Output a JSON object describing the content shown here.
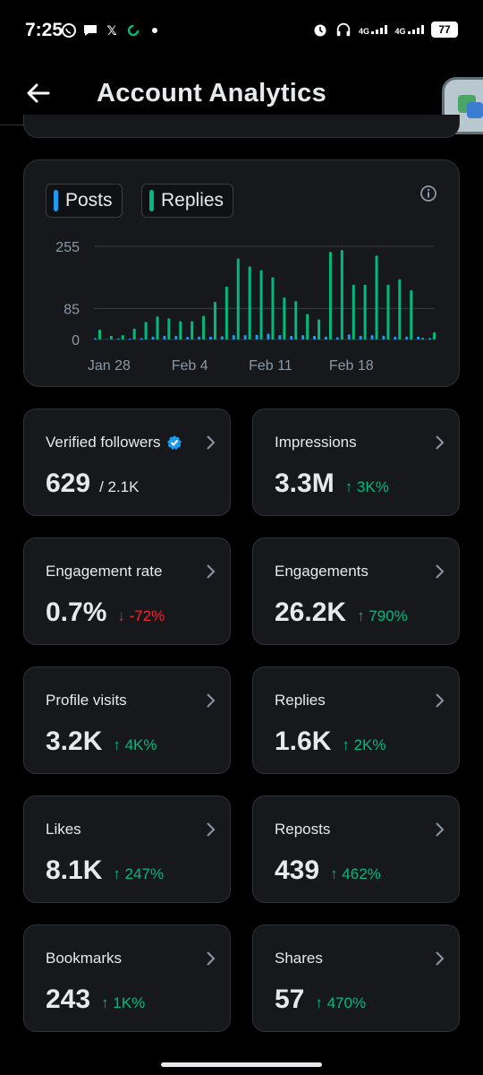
{
  "status_bar": {
    "time": "7:25",
    "network_1": "4G",
    "network_2": "4G",
    "battery": "77"
  },
  "header": {
    "title": "Account Analytics"
  },
  "chart": {
    "legend": [
      {
        "label": "Posts",
        "color": "#1d9bf0"
      },
      {
        "label": "Replies",
        "color": "#00ba7c"
      }
    ]
  },
  "chart_data": {
    "type": "bar",
    "y_ticks": [
      "255",
      "85",
      "0"
    ],
    "ylim": [
      0,
      255
    ],
    "x_ticks": [
      "Jan 28",
      "Feb 4",
      "Feb 11",
      "Feb 18"
    ],
    "categories": [
      "Jan 27",
      "Jan 28",
      "Jan 29",
      "Jan 30",
      "Jan 31",
      "Feb 1",
      "Feb 2",
      "Feb 3",
      "Feb 4",
      "Feb 5",
      "Feb 6",
      "Feb 7",
      "Feb 8",
      "Feb 9",
      "Feb 10",
      "Feb 11",
      "Feb 12",
      "Feb 13",
      "Feb 14",
      "Feb 15",
      "Feb 16",
      "Feb 17",
      "Feb 18",
      "Feb 19",
      "Feb 20",
      "Feb 21",
      "Feb 22",
      "Feb 23",
      "Feb 24",
      "Feb 25"
    ],
    "series": [
      {
        "name": "Posts",
        "color": "#1d9bf0",
        "values": [
          4,
          1,
          3,
          2,
          4,
          8,
          10,
          10,
          7,
          8,
          8,
          9,
          12,
          12,
          13,
          16,
          12,
          10,
          12,
          10,
          8,
          6,
          14,
          10,
          12,
          10,
          8,
          8,
          8,
          4
        ]
      },
      {
        "name": "Replies",
        "color": "#00ba7c",
        "values": [
          27,
          10,
          12,
          30,
          48,
          63,
          58,
          50,
          50,
          65,
          103,
          145,
          222,
          200,
          190,
          170,
          115,
          105,
          70,
          55,
          240,
          245,
          150,
          150,
          230,
          150,
          165,
          135,
          5,
          20
        ]
      }
    ]
  },
  "stats": [
    {
      "label": "Verified followers",
      "value": "629",
      "extra": "/ 2.1K",
      "verified": true
    },
    {
      "label": "Impressions",
      "value": "3.3M",
      "delta": "↑ 3K%",
      "dir": "up"
    },
    {
      "label": "Engagement rate",
      "value": "0.7%",
      "delta": "↓ -72%",
      "dir": "down"
    },
    {
      "label": "Engagements",
      "value": "26.2K",
      "delta": "↑ 790%",
      "dir": "up"
    },
    {
      "label": "Profile visits",
      "value": "3.2K",
      "delta": "↑ 4K%",
      "dir": "up"
    },
    {
      "label": "Replies",
      "value": "1.6K",
      "delta": "↑ 2K%",
      "dir": "up"
    },
    {
      "label": "Likes",
      "value": "8.1K",
      "delta": "↑ 247%",
      "dir": "up"
    },
    {
      "label": "Reposts",
      "value": "439",
      "delta": "↑ 462%",
      "dir": "up"
    },
    {
      "label": "Bookmarks",
      "value": "243",
      "delta": "↑ 1K%",
      "dir": "up"
    },
    {
      "label": "Shares",
      "value": "57",
      "delta": "↑ 470%",
      "dir": "up"
    }
  ]
}
